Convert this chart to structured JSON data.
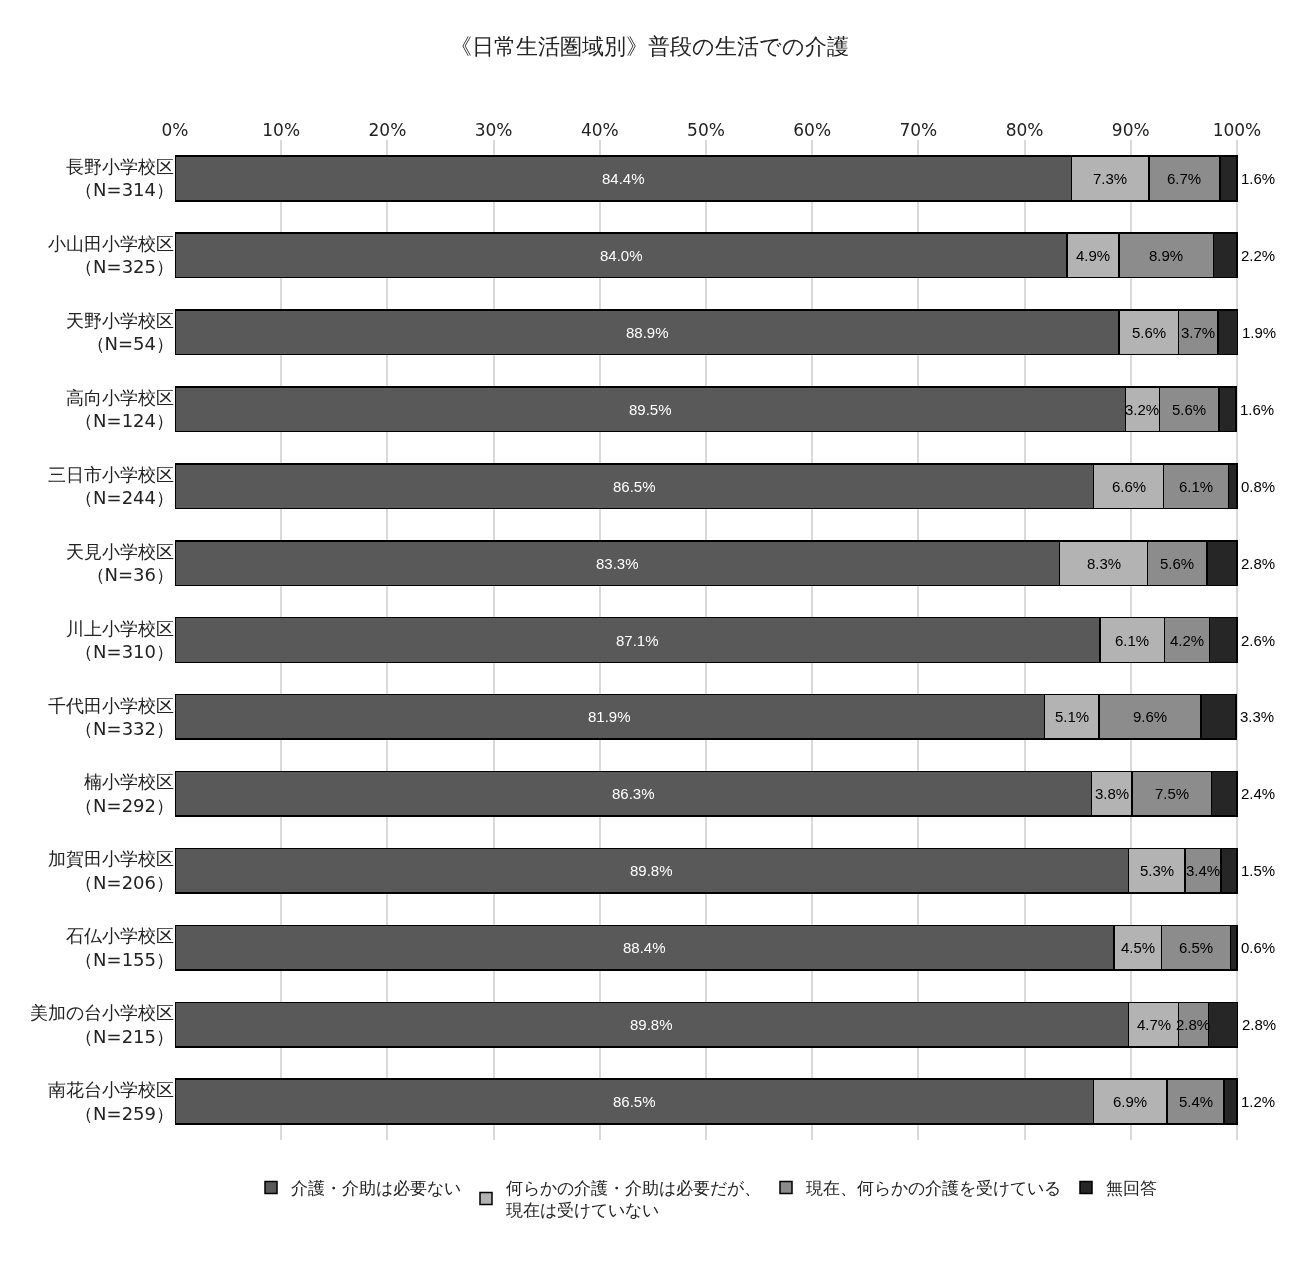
{
  "chart_data": {
    "type": "bar",
    "orientation": "horizontal",
    "stacked": true,
    "title": "《日常生活圏域別》普段の生活での介護",
    "categories": [
      "長野小学校区（N=314）",
      "小山田小学校区（N=325）",
      "天野小学校区（N=54）",
      "高向小学校区（N=124）",
      "三日市小学校区（N=244）",
      "天見小学校区（N=36）",
      "川上小学校区（N=310）",
      "千代田小学校区（N=332）",
      "楠小学校区（N=292）",
      "加賀田小学校区（N=206）",
      "石仏小学校区（N=155）",
      "美加の台小学校区（N=215）",
      "南花台小学校区（N=259）"
    ],
    "series": [
      {
        "name": "介護・介助は必要ない",
        "color": "#595959",
        "values": [
          84.4,
          84.0,
          88.9,
          89.5,
          86.5,
          83.3,
          87.1,
          81.9,
          86.3,
          89.8,
          88.4,
          89.8,
          86.5
        ],
        "value_labels": [
          "84.4%",
          "84.0%",
          "88.9%",
          "89.5%",
          "86.5%",
          "83.3%",
          "87.1%",
          "81.9%",
          "86.3%",
          "89.8%",
          "88.4%",
          "89.8%",
          "86.5%"
        ]
      },
      {
        "name": "何らかの介護・介助は必要だが、現在は受けていない",
        "color": "#b3b3b3",
        "values": [
          7.3,
          4.9,
          5.6,
          3.2,
          6.6,
          8.3,
          6.1,
          5.1,
          3.8,
          5.3,
          4.5,
          4.7,
          6.9
        ],
        "value_labels": [
          "7.3%",
          "4.9%",
          "5.6%",
          "3.2%",
          "6.6%",
          "8.3%",
          "6.1%",
          "5.1%",
          "3.8%",
          "5.3%",
          "4.5%",
          "4.7%",
          "6.9%"
        ]
      },
      {
        "name": "現在、何らかの介護を受けている",
        "color": "#8c8c8c",
        "values": [
          6.7,
          8.9,
          3.7,
          5.6,
          6.1,
          5.6,
          4.2,
          9.6,
          7.5,
          3.4,
          6.5,
          2.8,
          5.4
        ],
        "value_labels": [
          "6.7%",
          "8.9%",
          "3.7%",
          "5.6%",
          "6.1%",
          "5.6%",
          "4.2%",
          "9.6%",
          "7.5%",
          "3.4%",
          "6.5%",
          "2.8%",
          "5.4%"
        ]
      },
      {
        "name": "無回答",
        "color": "#262626",
        "values": [
          1.6,
          2.2,
          1.9,
          1.6,
          0.8,
          2.8,
          2.6,
          3.3,
          2.4,
          1.5,
          0.6,
          2.8,
          1.2
        ],
        "value_labels": [
          "1.6%",
          "2.2%",
          "1.9%",
          "1.6%",
          "0.8%",
          "2.8%",
          "2.6%",
          "3.3%",
          "2.4%",
          "1.5%",
          "0.6%",
          "2.8%",
          "1.2%"
        ]
      }
    ],
    "xlim": [
      0,
      100.1
    ],
    "xticks": [
      {
        "value": 0,
        "label": "0%"
      },
      {
        "value": 10,
        "label": "10%"
      },
      {
        "value": 20,
        "label": "20%"
      },
      {
        "value": 30,
        "label": "30%"
      },
      {
        "value": 40,
        "label": "40%"
      },
      {
        "value": 50,
        "label": "50%"
      },
      {
        "value": 60,
        "label": "60%"
      },
      {
        "value": 70,
        "label": "70%"
      },
      {
        "value": 80,
        "label": "80%"
      },
      {
        "value": 90,
        "label": "90%"
      },
      {
        "value": 100,
        "label": "100%"
      }
    ],
    "grid": "x",
    "legend": "bottom"
  }
}
